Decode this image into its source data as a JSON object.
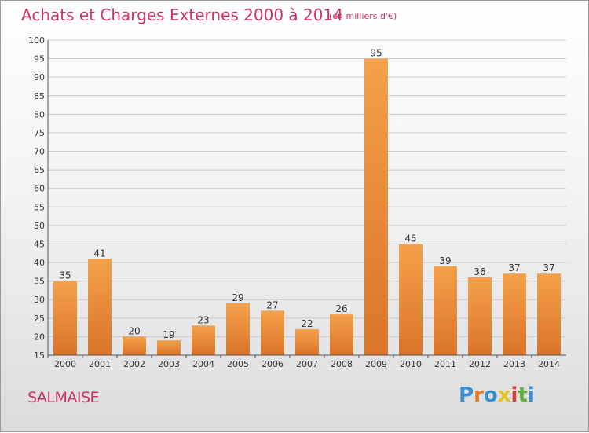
{
  "title": "Achats et Charges Externes 2000 à 2014",
  "subtitle": "(en milliers d'€)",
  "commune": "SALMAISE",
  "logo": {
    "letters": [
      "P",
      "r",
      "o",
      "x",
      "i",
      "t",
      "i"
    ],
    "colors": [
      "#3a8fd0",
      "#e87b1f",
      "#3a8fd0",
      "#e8c21f",
      "#d23c3c",
      "#5fb03a",
      "#3a8fd0"
    ]
  },
  "colors": {
    "bar_light": "#f5a04a",
    "bar_dark": "#d9742a",
    "title": "#cc3366",
    "grid": "#c8c8c8"
  },
  "chart_data": {
    "type": "bar",
    "title": "Achats et Charges Externes 2000 à 2014",
    "subtitle": "(en milliers d'€)",
    "categories": [
      "2000",
      "2001",
      "2002",
      "2003",
      "2004",
      "2005",
      "2006",
      "2007",
      "2008",
      "2009",
      "2010",
      "2011",
      "2012",
      "2013",
      "2014"
    ],
    "values": [
      35,
      41,
      20,
      19,
      23,
      29,
      27,
      22,
      26,
      95,
      45,
      39,
      36,
      37,
      37
    ],
    "ylim": [
      15,
      100
    ],
    "yticks": [
      15,
      20,
      25,
      30,
      35,
      40,
      45,
      50,
      55,
      60,
      65,
      70,
      75,
      80,
      85,
      90,
      95,
      100
    ],
    "grid": true,
    "xlabel": "",
    "ylabel": ""
  }
}
